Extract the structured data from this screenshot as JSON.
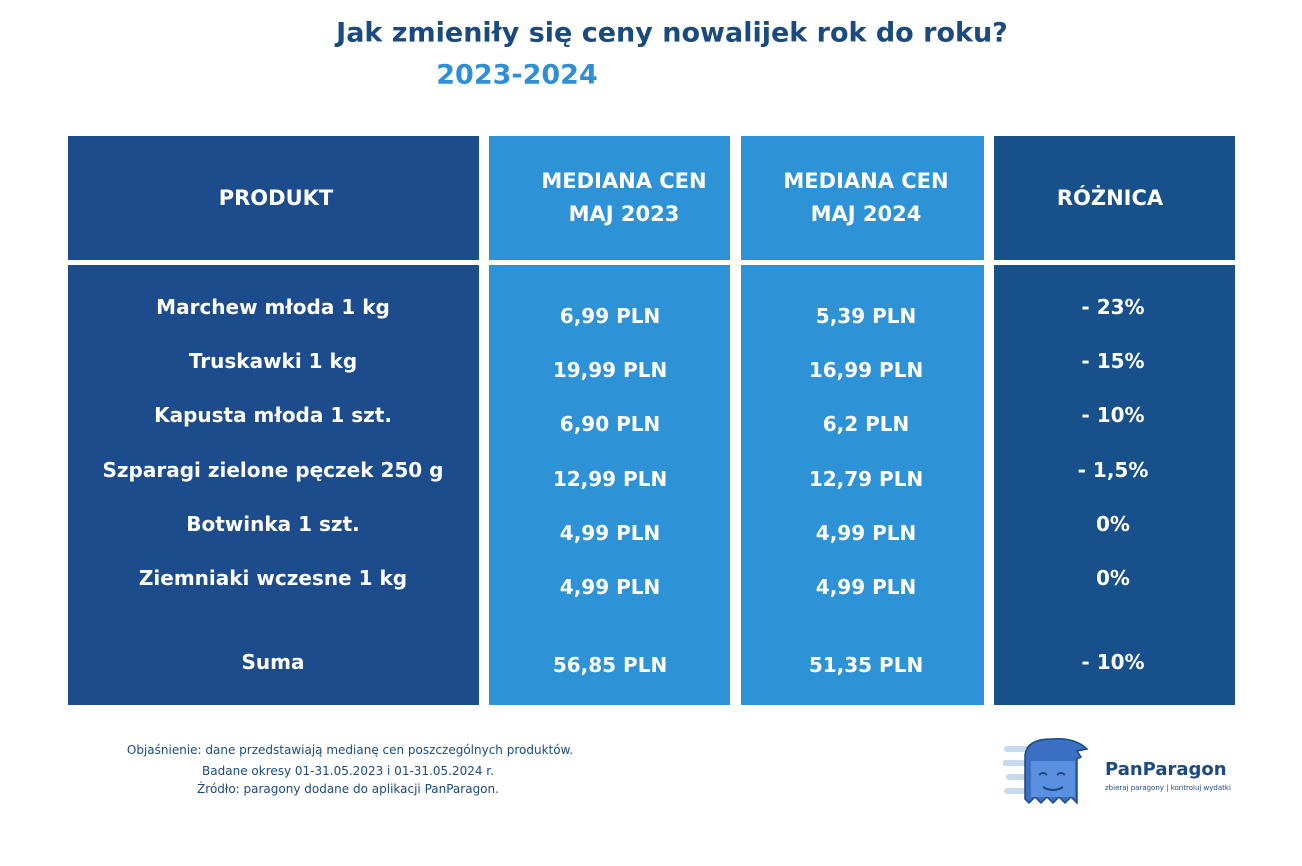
{
  "header": {
    "title": "Jak zmieniły się ceny nowalijek rok do roku?",
    "subtitle": "2023-2024"
  },
  "table": {
    "headers": [
      "PRODUKT",
      "MEDIANA CEN MAJ 2023",
      "MEDIANA CEN MAJ 2024",
      "RÓŻNICA"
    ],
    "rows": [
      [
        "Marchew młoda 1 kg",
        "6,99 PLN",
        "5,39 PLN",
        "- 23%"
      ],
      [
        "Truskawki 1 kg",
        "19,99 PLN",
        "16,99 PLN",
        "- 15%"
      ],
      [
        "Kapusta młoda 1 szt.",
        "6,90 PLN",
        "6,2 PLN",
        "- 10%"
      ],
      [
        "Szparagi zielone pęczek 250 g",
        "12,99 PLN",
        "12,79 PLN",
        "- 1,5%"
      ],
      [
        "Botwinka 1 szt.",
        "4,99 PLN",
        "4,99 PLN",
        "0%"
      ],
      [
        "Ziemniaki wczesne 1 kg",
        "4,99 PLN",
        "4,99 PLN",
        "0%"
      ]
    ],
    "total": [
      "Suma",
      "56,85 PLN",
      "51,35 PLN",
      "- 10%"
    ]
  },
  "footnote": [
    "Objaśnienie: dane przedstawiają medianę cen poszczególnych produktów.",
    "Badane okresy  01-31.05.2023 i 01-31.05.2024 r.",
    "Źródło: paragony dodane do aplikacji PanParagon."
  ],
  "logo": {
    "name": "PanParagon",
    "tagline": "zbieraj paragony | kontroluj wydatki"
  }
}
